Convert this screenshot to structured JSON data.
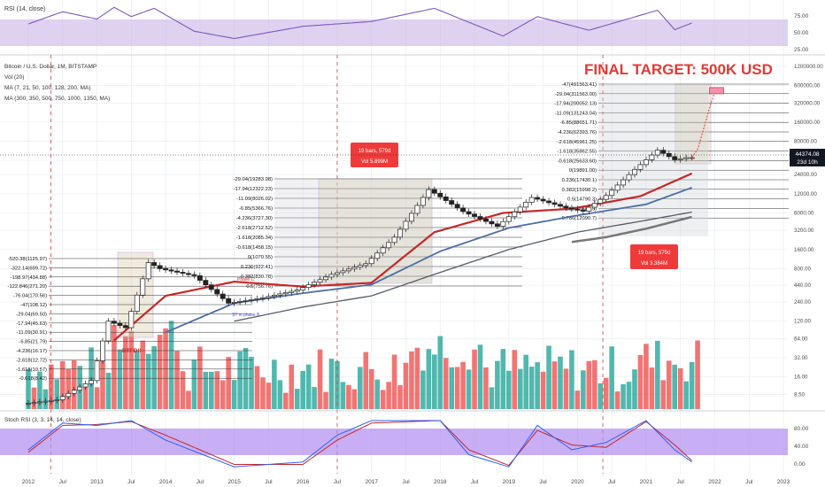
{
  "colors": {
    "background": "#ffffff",
    "grid": "#e8ecf2",
    "axis_text": "#4a4a4a",
    "rsi_band": "#c8b4e6",
    "rsi_line": "#7e57c2",
    "stoch_band": "#b18cf0",
    "stoch_k": "#2962ff",
    "stoch_d": "#c62828",
    "candle_up": "#ffffff",
    "candle_down": "#222222",
    "ma_red": "#c62828",
    "ma_blue": "#4a6fa5",
    "ma_gray": "#777777",
    "ma_dark": "#555d66",
    "vol_up": "#26a69a",
    "vol_down": "#ef5350",
    "fib_line": "#333333",
    "target_text": "#e53935",
    "badge_bg": "#f03a3a",
    "price_tag": "#131722",
    "sideline": "#d24040"
  },
  "rsi_panel": {
    "title": "RSI (14, close)",
    "ticks": [
      "75.00",
      "50.00",
      "25.00"
    ]
  },
  "main_panel": {
    "legend": [
      "Bitcoin / U.S. Dollar, 1M, BITSTAMP",
      "Vol (20)",
      "MA (7, 21, 50, 100, 128, 200, MA)",
      "MA (300, 350, 500, 750, 1000, 1350, MA)"
    ],
    "final_target": "FINAL TARGET: 500K USD",
    "price_ticks": [
      "1200000.00",
      "600000.00",
      "320000.00",
      "160000.00",
      "80000.00",
      "40000.00",
      "24000.00",
      "12000.00",
      "6000.00",
      "3200.00",
      "1600.00",
      "800.00",
      "440.00",
      "240.00",
      "120.00",
      "64.00",
      "32.00",
      "16.00",
      "8.50"
    ],
    "current_price": "44374.08",
    "countdown": "23d 10h",
    "badges": [
      {
        "line1": "19 bars, 579d",
        "line2": "Vol 5.899M"
      },
      {
        "line1": "19 bars, 579d",
        "line2": "Vol 3.384M"
      }
    ],
    "annotations": [
      "BTFD!!",
      "Phase C",
      "ST in phase B"
    ]
  },
  "fib_sets": [
    {
      "name": "cycle-2013",
      "labels": [
        "-520.38(1125.97)",
        "-322.14(699.72)",
        "-198.97(434.88)",
        "-122.846(271.20)",
        "-76.04(170.56)",
        "-47(108.12)",
        "-29.04(69.50)",
        "-17.94(45.63)",
        "-11.09(30.91)",
        "-6.85(21.79)",
        "-4.236(16.17)",
        "-2.618(12.72)",
        "-1.618(10.57)",
        "-0.618(8.42)"
      ]
    },
    {
      "name": "cycle-2017",
      "labels": [
        "-29.04(19283.98)",
        "-17.94(12322.23)",
        "-11.09(8026.02)",
        "-6.85(5366.76)",
        "-4.236(3727.30)",
        "-2.618(2712.52)",
        "-1.618(2085.34)",
        "-0.618(1458.15)",
        "0(1070.55)",
        "0.236(922.41)",
        "0.382(830.78)",
        "0.5(756.76)"
      ]
    },
    {
      "name": "cycle-2021",
      "labels": [
        "-47(491563.41)",
        "-29.04(311563.00)",
        "-17.94(200052.13)",
        "-11.09(131243.04)",
        "-6.85(88651.71)",
        "-4.236(62393.76)",
        "-2.618(45961.25)",
        "-1.618(35862.55)",
        "-0.618(25633.60)",
        "0(19891.00)",
        "0.236(17430.1)",
        "0.382(15998.2)",
        "0.5(14790.3)",
        "0.618(13680.5)",
        "0.786(12090.7)"
      ]
    }
  ],
  "stoch_panel": {
    "title": "Stoch RSI (3, 3, 14, 14, close)",
    "ticks": [
      "80.00",
      "40.00",
      "0.00"
    ]
  },
  "x_axis": {
    "labels": [
      "2012",
      "Jul",
      "2013",
      "Jul",
      "2014",
      "Jul",
      "2015",
      "Jul",
      "2016",
      "Jul",
      "2017",
      "Jul",
      "2018",
      "Jul",
      "2019",
      "Jul",
      "2020",
      "Jul",
      "2021",
      "Jul",
      "2022",
      "Jul",
      "2023"
    ]
  },
  "chart_data": {
    "type": "line",
    "title": "Bitcoin / U.S. Dollar, 1M, BITSTAMP",
    "y_scale": "log",
    "ylim": [
      5,
      1200000
    ],
    "x_range": [
      "2012-01",
      "2023-01"
    ],
    "price_series": {
      "name": "Bitcoin / U.S. Dollar",
      "dates": [
        "2012-01",
        "2012-07",
        "2013-01",
        "2013-04",
        "2013-07",
        "2013-11",
        "2014-01",
        "2014-07",
        "2015-01",
        "2015-07",
        "2016-01",
        "2016-07",
        "2017-01",
        "2017-06",
        "2017-12",
        "2018-06",
        "2018-12",
        "2019-06",
        "2019-12",
        "2020-03",
        "2020-07",
        "2020-12",
        "2021-04",
        "2021-07",
        "2021-09"
      ],
      "values": [
        6,
        7,
        14,
        120,
        95,
        1000,
        800,
        620,
        230,
        280,
        370,
        650,
        960,
        2500,
        14000,
        6300,
        3700,
        10500,
        7200,
        6400,
        11300,
        29000,
        58000,
        41000,
        44374
      ]
    },
    "projection": {
      "dates": [
        "2021-09",
        "2021-10",
        "2021-11",
        "2021-12",
        "2022-01"
      ],
      "values": [
        44374,
        60000,
        120000,
        250000,
        491563
      ]
    },
    "ma_series": [
      {
        "dates": [
          "2013-04",
          "2014-01",
          "2015-01",
          "2016-01",
          "2017-01",
          "2017-12",
          "2018-12",
          "2019-12",
          "2020-12",
          "2021-09"
        ],
        "values": [
          60,
          300,
          500,
          420,
          480,
          3000,
          6000,
          7000,
          11000,
          25000
        ]
      },
      {
        "dates": [
          "2014-01",
          "2015-01",
          "2016-01",
          "2017-01",
          "2018-01",
          "2019-01",
          "2020-01",
          "2021-01",
          "2021-09"
        ],
        "values": [
          80,
          230,
          330,
          450,
          1500,
          3500,
          5500,
          8200,
          15000
        ]
      },
      {
        "dates": [
          "2015-01",
          "2016-01",
          "2017-01",
          "2018-01",
          "2019-01",
          "2020-01",
          "2021-01",
          "2021-09"
        ],
        "values": [
          120,
          200,
          300,
          700,
          1600,
          3000,
          4600,
          6200
        ]
      },
      {
        "dates": [
          "2019-12",
          "2020-06",
          "2021-01",
          "2021-09"
        ],
        "values": [
          2100,
          2500,
          3400,
          5200
        ]
      }
    ],
    "rsi": {
      "dates": [
        "2012-01",
        "2012-07",
        "2013-01",
        "2013-04",
        "2013-07",
        "2013-11",
        "2014-06",
        "2015-01",
        "2016-01",
        "2017-01",
        "2017-12",
        "2018-12",
        "2019-06",
        "2020-03",
        "2021-03",
        "2021-06",
        "2021-09"
      ],
      "values": [
        60,
        85,
        70,
        94,
        75,
        92,
        45,
        30,
        55,
        65,
        92,
        35,
        75,
        47,
        88,
        48,
        62
      ]
    },
    "stoch": {
      "k": {
        "dates": [
          "2012-01",
          "2012-07",
          "2013-01",
          "2013-07",
          "2014-01",
          "2015-01",
          "2016-01",
          "2016-07",
          "2017-01",
          "2018-01",
          "2018-06",
          "2019-01",
          "2019-06",
          "2019-12",
          "2020-06",
          "2021-01",
          "2021-06",
          "2021-09"
        ],
        "values": [
          40,
          95,
          90,
          100,
          60,
          5,
          15,
          70,
          100,
          100,
          30,
          5,
          90,
          40,
          55,
          100,
          40,
          15
        ]
      },
      "d": {
        "dates": [
          "2012-01",
          "2012-07",
          "2013-01",
          "2013-07",
          "2014-01",
          "2015-01",
          "2016-01",
          "2016-07",
          "2017-01",
          "2018-01",
          "2018-06",
          "2019-01",
          "2019-06",
          "2019-12",
          "2020-06",
          "2021-01",
          "2021-06",
          "2021-09"
        ],
        "values": [
          35,
          90,
          92,
          98,
          70,
          10,
          10,
          60,
          95,
          100,
          40,
          8,
          80,
          50,
          45,
          98,
          50,
          18
        ]
      }
    },
    "volume_scale": "relative"
  }
}
